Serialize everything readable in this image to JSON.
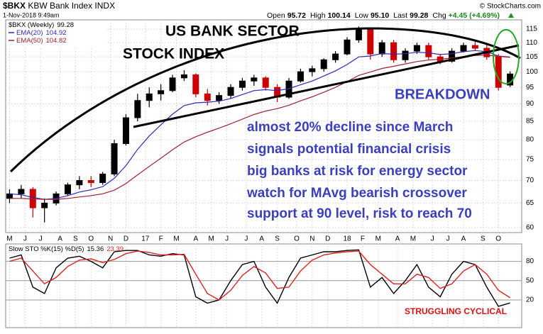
{
  "header": {
    "symbol": "$BKX",
    "name": "KBW Bank Index",
    "exchange": "INDX",
    "datetime": "1-Nov-2018 9:49am",
    "source": "© StockCharts.com",
    "quote": [
      {
        "label": "Open",
        "value": "95.72"
      },
      {
        "label": "High",
        "value": "100.14"
      },
      {
        "label": "Low",
        "value": "95.10"
      },
      {
        "label": "Last",
        "value": "99.28"
      },
      {
        "label": "Chg",
        "value": "+4.45 (+4.69%)"
      }
    ]
  },
  "annotations": {
    "title_lines": [
      "US BANK SECTOR",
      "STOCK INDEX"
    ],
    "breakdown": "BREAKDOWN",
    "notes": [
      "almost 20% decline since March",
      "signals potential financial crisis",
      "big banks at risk for energy sector",
      "watch for MAvg bearish crossover",
      "support at 90 level, risk to reach 70"
    ],
    "struggling": "STRUGGLING CYCLICAL"
  },
  "chart_data": [
    {
      "type": "candlestick",
      "name": "$BKX (Weekly)",
      "log_scale": true,
      "grid": true,
      "up_color": "#000000",
      "down_color": "#cc0000",
      "xlim": [
        0,
        133
      ],
      "ylim": [
        59,
        118
      ],
      "yticks": [
        60,
        65,
        70,
        75,
        80,
        85,
        90,
        95,
        100,
        105,
        110,
        115
      ],
      "xticks": [
        {
          "value": 1,
          "label": "M"
        },
        {
          "value": 5,
          "label": "J"
        },
        {
          "value": 9,
          "label": "J"
        },
        {
          "value": 14,
          "label": "A"
        },
        {
          "value": 18,
          "label": "S"
        },
        {
          "value": 22,
          "label": "O"
        },
        {
          "value": 27,
          "label": "N"
        },
        {
          "value": 31,
          "label": "D"
        },
        {
          "value": 36,
          "label": "17"
        },
        {
          "value": 40,
          "label": "F"
        },
        {
          "value": 44,
          "label": "M"
        },
        {
          "value": 49,
          "label": "A"
        },
        {
          "value": 53,
          "label": "M"
        },
        {
          "value": 57,
          "label": "J"
        },
        {
          "value": 62,
          "label": "J"
        },
        {
          "value": 66,
          "label": "A"
        },
        {
          "value": 70,
          "label": "S"
        },
        {
          "value": 75,
          "label": "O"
        },
        {
          "value": 79,
          "label": "N"
        },
        {
          "value": 83,
          "label": "D"
        },
        {
          "value": 88,
          "label": "18"
        },
        {
          "value": 92,
          "label": "F"
        },
        {
          "value": 96,
          "label": "M"
        },
        {
          "value": 101,
          "label": "A"
        },
        {
          "value": 105,
          "label": "M"
        },
        {
          "value": 110,
          "label": "J"
        },
        {
          "value": 114,
          "label": "J"
        },
        {
          "value": 118,
          "label": "A"
        },
        {
          "value": 123,
          "label": "S"
        },
        {
          "value": 127,
          "label": "O"
        }
      ],
      "x": [
        1,
        4,
        7,
        10,
        13,
        16,
        19,
        22,
        25,
        28,
        31,
        34,
        37,
        40,
        43,
        46,
        49,
        52,
        55,
        58,
        61,
        64,
        67,
        70,
        73,
        76,
        79,
        82,
        85,
        88,
        91,
        94,
        97,
        100,
        103,
        106,
        109,
        112,
        115,
        118,
        121,
        124,
        127,
        130
      ],
      "open": [
        66,
        67,
        68,
        64,
        65,
        67,
        69,
        70,
        69.5,
        71.5,
        79,
        86,
        91,
        93,
        94,
        98,
        99,
        93,
        91,
        92.5,
        95,
        97,
        98,
        95,
        92,
        97,
        100,
        101,
        104,
        106,
        111,
        115,
        106,
        110,
        104,
        107,
        109,
        105,
        103.5,
        107,
        109,
        108,
        105,
        95.72
      ],
      "high": [
        68,
        69,
        68.5,
        66,
        67.5,
        69.5,
        71,
        71,
        72,
        80,
        87,
        93,
        95,
        96,
        99,
        100.5,
        99.5,
        94.5,
        93.5,
        96,
        98,
        99,
        98.5,
        96,
        98,
        101,
        102,
        104.5,
        107,
        112,
        116,
        115.5,
        111,
        111,
        108,
        110,
        110,
        106,
        108,
        110,
        110.5,
        109.5,
        106,
        100.14
      ],
      "low": [
        65,
        66,
        62,
        61,
        64.5,
        66.5,
        68,
        68.5,
        69,
        71,
        78.5,
        85,
        89,
        91,
        93.5,
        97,
        92,
        89.5,
        90,
        91.5,
        94,
        95.5,
        94,
        90.5,
        91.5,
        96.5,
        98.5,
        100,
        103,
        105.5,
        110,
        104,
        105,
        103,
        103,
        106,
        104,
        102.5,
        103,
        106.5,
        107,
        104,
        94,
        95.1
      ],
      "close": [
        67,
        68,
        64,
        65,
        67,
        69,
        70,
        69.5,
        71.5,
        79,
        86,
        91,
        93,
        94,
        98,
        99,
        93,
        91,
        92.5,
        95,
        97,
        98,
        95,
        92,
        97,
        100,
        101,
        104,
        106,
        111,
        115,
        106,
        110,
        104,
        107,
        109,
        105,
        103.5,
        107,
        109,
        108,
        105,
        95,
        99.28
      ],
      "series": [
        {
          "name": "EMA(20)",
          "color": "#2b2bb8",
          "values": [
            67,
            66.8,
            66.2,
            65.8,
            66,
            66.6,
            67.4,
            67.9,
            68.6,
            70.5,
            73.5,
            77.5,
            81,
            84,
            87,
            89.5,
            90.3,
            90.5,
            90.8,
            91.6,
            92.8,
            94,
            94.3,
            94,
            94.6,
            95.8,
            97,
            98.6,
            100.3,
            102.4,
            105,
            105.3,
            106.2,
            105.9,
            106.1,
            106.6,
            106.4,
            105.8,
            106.1,
            106.8,
            107.2,
            106.8,
            105.3,
            104.92
          ]
        },
        {
          "name": "EMA(50)",
          "color": "#a02030",
          "values": [
            66,
            66,
            65.9,
            65.8,
            65.8,
            66,
            66.3,
            66.6,
            67,
            67.8,
            69.3,
            71.3,
            73.3,
            75.3,
            77.4,
            79.4,
            80.8,
            82,
            83.1,
            84.3,
            85.6,
            86.9,
            87.9,
            88.6,
            89.6,
            90.9,
            92.1,
            93.5,
            95,
            96.8,
            98.8,
            99.9,
            101.1,
            101.8,
            102.6,
            103.4,
            103.9,
            104.2,
            104.6,
            105.1,
            105.5,
            105.6,
            105.2,
            104.82
          ]
        }
      ]
    },
    {
      "type": "line",
      "title": "Slow STO %K(15) %D(5)",
      "grid": true,
      "xlim": [
        0,
        133
      ],
      "ylim": [
        -23,
        106
      ],
      "yticks": [
        20,
        50,
        80
      ],
      "x": [
        1,
        4,
        7,
        10,
        13,
        16,
        19,
        22,
        25,
        28,
        31,
        34,
        37,
        40,
        43,
        46,
        49,
        52,
        55,
        58,
        61,
        64,
        67,
        70,
        73,
        76,
        79,
        82,
        85,
        88,
        91,
        94,
        97,
        100,
        103,
        106,
        109,
        112,
        115,
        118,
        121,
        124,
        127,
        130
      ],
      "series": [
        {
          "name": "%K",
          "color": "#000000",
          "values": [
            85,
            90,
            40,
            30,
            70,
            85,
            88,
            80,
            70,
            95,
            97,
            97,
            90,
            88,
            92,
            90,
            25,
            15,
            20,
            50,
            75,
            80,
            40,
            15,
            55,
            85,
            90,
            95,
            95,
            97,
            98,
            40,
            55,
            30,
            50,
            75,
            40,
            25,
            60,
            80,
            75,
            40,
            10,
            15.36
          ]
        },
        {
          "name": "%D",
          "color": "#dd2222",
          "values": [
            80,
            85,
            65,
            45,
            55,
            72,
            82,
            84,
            78,
            83,
            92,
            96,
            94,
            90,
            90,
            91,
            60,
            30,
            20,
            35,
            58,
            72,
            62,
            38,
            40,
            65,
            82,
            90,
            93,
            95,
            96,
            75,
            60,
            45,
            45,
            60,
            55,
            38,
            45,
            65,
            75,
            60,
            35,
            23.39
          ]
        }
      ]
    }
  ]
}
